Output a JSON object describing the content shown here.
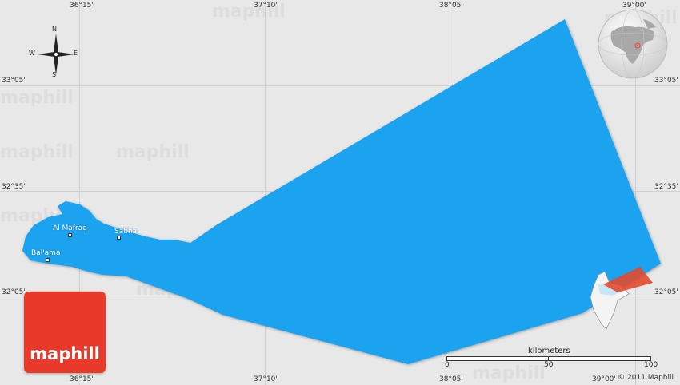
{
  "map": {
    "coords_top": [
      "36°15'",
      "37°10'",
      "38°05'",
      "39°00'"
    ],
    "coords_bottom": [
      "36°15'",
      "37°10'",
      "38°05'",
      "39°00'"
    ],
    "coords_left": [
      "33°05'",
      "32°35'",
      "32°05'"
    ],
    "coords_right": [
      "33°05'",
      "32°35'",
      "32°05'"
    ],
    "places": [
      {
        "name": "Al Mafraq"
      },
      {
        "name": "Sabha"
      },
      {
        "name": "Bal'ama"
      }
    ],
    "compass": {
      "n": "N",
      "s": "S",
      "e": "E",
      "w": "W"
    },
    "watermark_text": "maphill",
    "logo_text": "maphill",
    "scale": {
      "title": "kilometers",
      "labels": [
        "0",
        "50",
        "100"
      ]
    },
    "copyright": "© 2011 Maphill",
    "colors": {
      "region": "#1aa3f0",
      "background": "#e8e8e8",
      "highlight": "#e24a2e",
      "logo": "#e8392a"
    }
  }
}
